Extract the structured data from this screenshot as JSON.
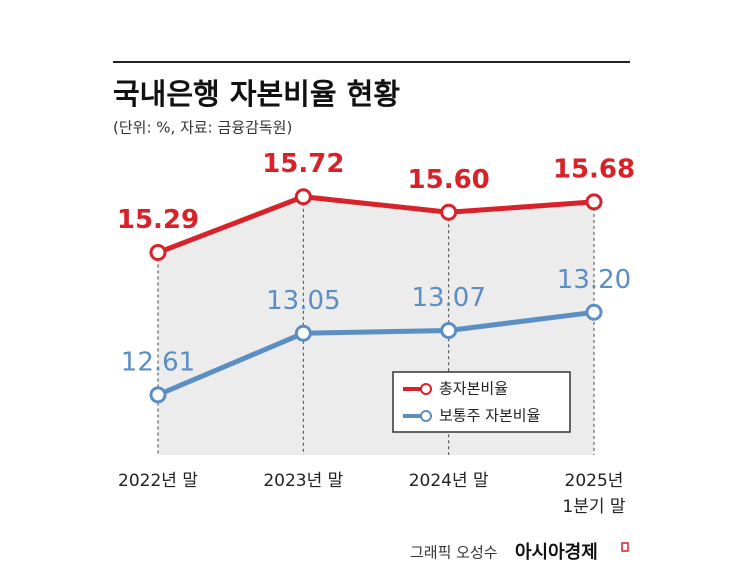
{
  "chart_data": {
    "type": "line",
    "title": "국내은행 자본비율 현황",
    "subtitle": "(단위: %, 자료: 금융감독원)",
    "categories": [
      "2022년 말",
      "2023년 말",
      "2024년 말",
      "2025년\n1분기 말"
    ],
    "ylim": [
      13.73,
      16.08
    ],
    "y2lim": [
      12.18,
      14.36
    ],
    "legend": "lower right",
    "series": [
      {
        "name": "총자본비율",
        "color": "#d7222a",
        "values": [
          15.29,
          15.72,
          15.6,
          15.68
        ],
        "value_labels": [
          "15.29",
          "15.72",
          "15.60",
          "15.68"
        ]
      },
      {
        "name": "보통주 자본비율",
        "color": "#5b8fc4",
        "axis": "y2",
        "values": [
          12.61,
          13.05,
          13.07,
          13.2
        ],
        "value_labels": [
          "12.61",
          "13.05",
          "13.07",
          "13.20"
        ]
      }
    ]
  },
  "credit": {
    "graphic": "그래픽 오성수",
    "logo": "아시아경제"
  }
}
